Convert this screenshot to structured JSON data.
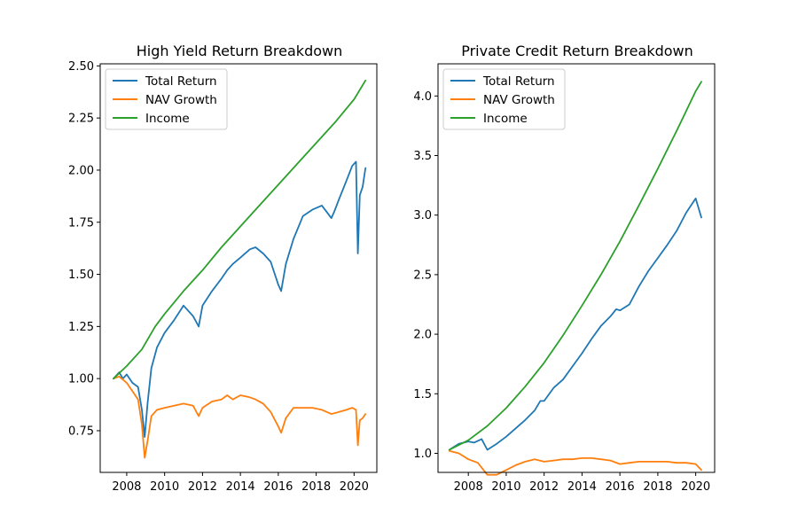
{
  "colors": {
    "total": "#1f77b4",
    "nav": "#ff7f0e",
    "income": "#2ca02c"
  },
  "chart_data": [
    {
      "type": "line",
      "title": "High Yield Return Breakdown",
      "xlabel": "",
      "ylabel": "",
      "xlim": [
        2006.6,
        2021.2
      ],
      "ylim": [
        0.55,
        2.51
      ],
      "xticks": [
        2008,
        2010,
        2012,
        2014,
        2016,
        2018,
        2020
      ],
      "xtick_labels": [
        "2008",
        "2010",
        "2012",
        "2014",
        "2016",
        "2018",
        "2020"
      ],
      "yticks": [
        0.75,
        1.0,
        1.25,
        1.5,
        1.75,
        2.0,
        2.25,
        2.5
      ],
      "ytick_labels": [
        "0.75",
        "1.00",
        "1.25",
        "1.50",
        "1.75",
        "2.00",
        "2.25",
        "2.50"
      ],
      "legend": "upper-left",
      "series": [
        {
          "name": "Total Return",
          "color": "#1f77b4",
          "x": [
            2007.3,
            2007.6,
            2007.8,
            2008.0,
            2008.3,
            2008.6,
            2008.8,
            2008.95,
            2009.1,
            2009.3,
            2009.6,
            2010.0,
            2010.5,
            2011.0,
            2011.5,
            2011.8,
            2012.0,
            2012.5,
            2013.0,
            2013.3,
            2013.6,
            2014.0,
            2014.5,
            2014.8,
            2015.2,
            2015.6,
            2016.0,
            2016.15,
            2016.4,
            2016.8,
            2017.3,
            2017.8,
            2018.3,
            2018.8,
            2018.95,
            2019.2,
            2019.6,
            2019.9,
            2020.1,
            2020.2,
            2020.3,
            2020.45,
            2020.6
          ],
          "values": [
            1.0,
            1.03,
            1.0,
            1.02,
            0.98,
            0.96,
            0.85,
            0.72,
            0.88,
            1.05,
            1.15,
            1.22,
            1.28,
            1.35,
            1.3,
            1.25,
            1.35,
            1.42,
            1.48,
            1.52,
            1.55,
            1.58,
            1.62,
            1.63,
            1.6,
            1.56,
            1.45,
            1.42,
            1.55,
            1.67,
            1.78,
            1.81,
            1.83,
            1.77,
            1.8,
            1.86,
            1.95,
            2.02,
            2.04,
            1.6,
            1.88,
            1.92,
            2.01
          ]
        },
        {
          "name": "NAV Growth",
          "color": "#ff7f0e",
          "x": [
            2007.3,
            2007.6,
            2008.0,
            2008.3,
            2008.6,
            2008.8,
            2008.95,
            2009.1,
            2009.3,
            2009.6,
            2010.0,
            2010.5,
            2011.0,
            2011.5,
            2011.8,
            2012.0,
            2012.5,
            2013.0,
            2013.3,
            2013.6,
            2014.0,
            2014.5,
            2014.8,
            2015.2,
            2015.6,
            2016.0,
            2016.15,
            2016.4,
            2016.8,
            2017.3,
            2017.8,
            2018.3,
            2018.8,
            2019.2,
            2019.6,
            2019.9,
            2020.1,
            2020.2,
            2020.3,
            2020.45,
            2020.6
          ],
          "values": [
            1.0,
            1.01,
            0.98,
            0.94,
            0.9,
            0.78,
            0.62,
            0.7,
            0.82,
            0.85,
            0.86,
            0.87,
            0.88,
            0.87,
            0.82,
            0.86,
            0.89,
            0.9,
            0.92,
            0.9,
            0.92,
            0.91,
            0.9,
            0.88,
            0.84,
            0.77,
            0.74,
            0.81,
            0.86,
            0.86,
            0.86,
            0.85,
            0.83,
            0.84,
            0.85,
            0.86,
            0.85,
            0.68,
            0.8,
            0.81,
            0.83
          ]
        },
        {
          "name": "Income",
          "color": "#2ca02c",
          "x": [
            2007.3,
            2008.0,
            2008.8,
            2009.5,
            2010.0,
            2011.0,
            2012.0,
            2013.0,
            2014.0,
            2015.0,
            2016.0,
            2017.0,
            2018.0,
            2019.0,
            2020.0,
            2020.6
          ],
          "values": [
            1.0,
            1.06,
            1.14,
            1.25,
            1.31,
            1.42,
            1.52,
            1.63,
            1.73,
            1.83,
            1.93,
            2.03,
            2.13,
            2.23,
            2.34,
            2.43
          ]
        }
      ]
    },
    {
      "type": "line",
      "title": "Private Credit Return Breakdown",
      "xlabel": "",
      "ylabel": "",
      "xlim": [
        2006.4,
        2021.0
      ],
      "ylim": [
        0.84,
        4.27
      ],
      "xticks": [
        2008,
        2010,
        2012,
        2014,
        2016,
        2018,
        2020
      ],
      "xtick_labels": [
        "2008",
        "2010",
        "2012",
        "2014",
        "2016",
        "2018",
        "2020"
      ],
      "yticks": [
        1.0,
        1.5,
        2.0,
        2.5,
        3.0,
        3.5,
        4.0
      ],
      "ytick_labels": [
        "1.0",
        "1.5",
        "2.0",
        "2.5",
        "3.0",
        "3.5",
        "4.0"
      ],
      "legend": "upper-left",
      "series": [
        {
          "name": "Total Return",
          "color": "#1f77b4",
          "x": [
            2007.0,
            2007.5,
            2008.0,
            2008.3,
            2008.7,
            2009.0,
            2009.5,
            2010.0,
            2010.5,
            2011.0,
            2011.5,
            2011.8,
            2012.0,
            2012.5,
            2013.0,
            2013.5,
            2014.0,
            2014.5,
            2015.0,
            2015.5,
            2015.8,
            2016.0,
            2016.5,
            2017.0,
            2017.5,
            2018.0,
            2018.5,
            2019.0,
            2019.5,
            2020.0,
            2020.3
          ],
          "values": [
            1.03,
            1.08,
            1.1,
            1.09,
            1.12,
            1.03,
            1.08,
            1.14,
            1.21,
            1.28,
            1.36,
            1.44,
            1.44,
            1.55,
            1.62,
            1.73,
            1.84,
            1.96,
            2.07,
            2.15,
            2.21,
            2.2,
            2.25,
            2.4,
            2.53,
            2.64,
            2.75,
            2.87,
            3.02,
            3.14,
            2.98
          ]
        },
        {
          "name": "NAV Growth",
          "color": "#ff7f0e",
          "x": [
            2007.0,
            2007.5,
            2008.0,
            2008.5,
            2009.0,
            2009.5,
            2010.0,
            2010.5,
            2011.0,
            2011.5,
            2012.0,
            2012.5,
            2013.0,
            2013.5,
            2014.0,
            2014.5,
            2015.0,
            2015.5,
            2016.0,
            2016.5,
            2017.0,
            2017.5,
            2018.0,
            2018.5,
            2019.0,
            2019.5,
            2020.0,
            2020.3
          ],
          "values": [
            1.02,
            1.0,
            0.95,
            0.92,
            0.82,
            0.82,
            0.86,
            0.9,
            0.93,
            0.95,
            0.93,
            0.94,
            0.95,
            0.95,
            0.96,
            0.96,
            0.95,
            0.94,
            0.91,
            0.92,
            0.93,
            0.93,
            0.93,
            0.93,
            0.92,
            0.92,
            0.91,
            0.86
          ]
        },
        {
          "name": "Income",
          "color": "#2ca02c",
          "x": [
            2007.0,
            2008.0,
            2009.0,
            2010.0,
            2011.0,
            2012.0,
            2013.0,
            2014.0,
            2015.0,
            2016.0,
            2017.0,
            2018.0,
            2019.0,
            2020.0,
            2020.3
          ],
          "values": [
            1.03,
            1.11,
            1.23,
            1.38,
            1.56,
            1.76,
            1.99,
            2.24,
            2.5,
            2.78,
            3.08,
            3.39,
            3.71,
            4.04,
            4.12
          ]
        }
      ]
    }
  ]
}
